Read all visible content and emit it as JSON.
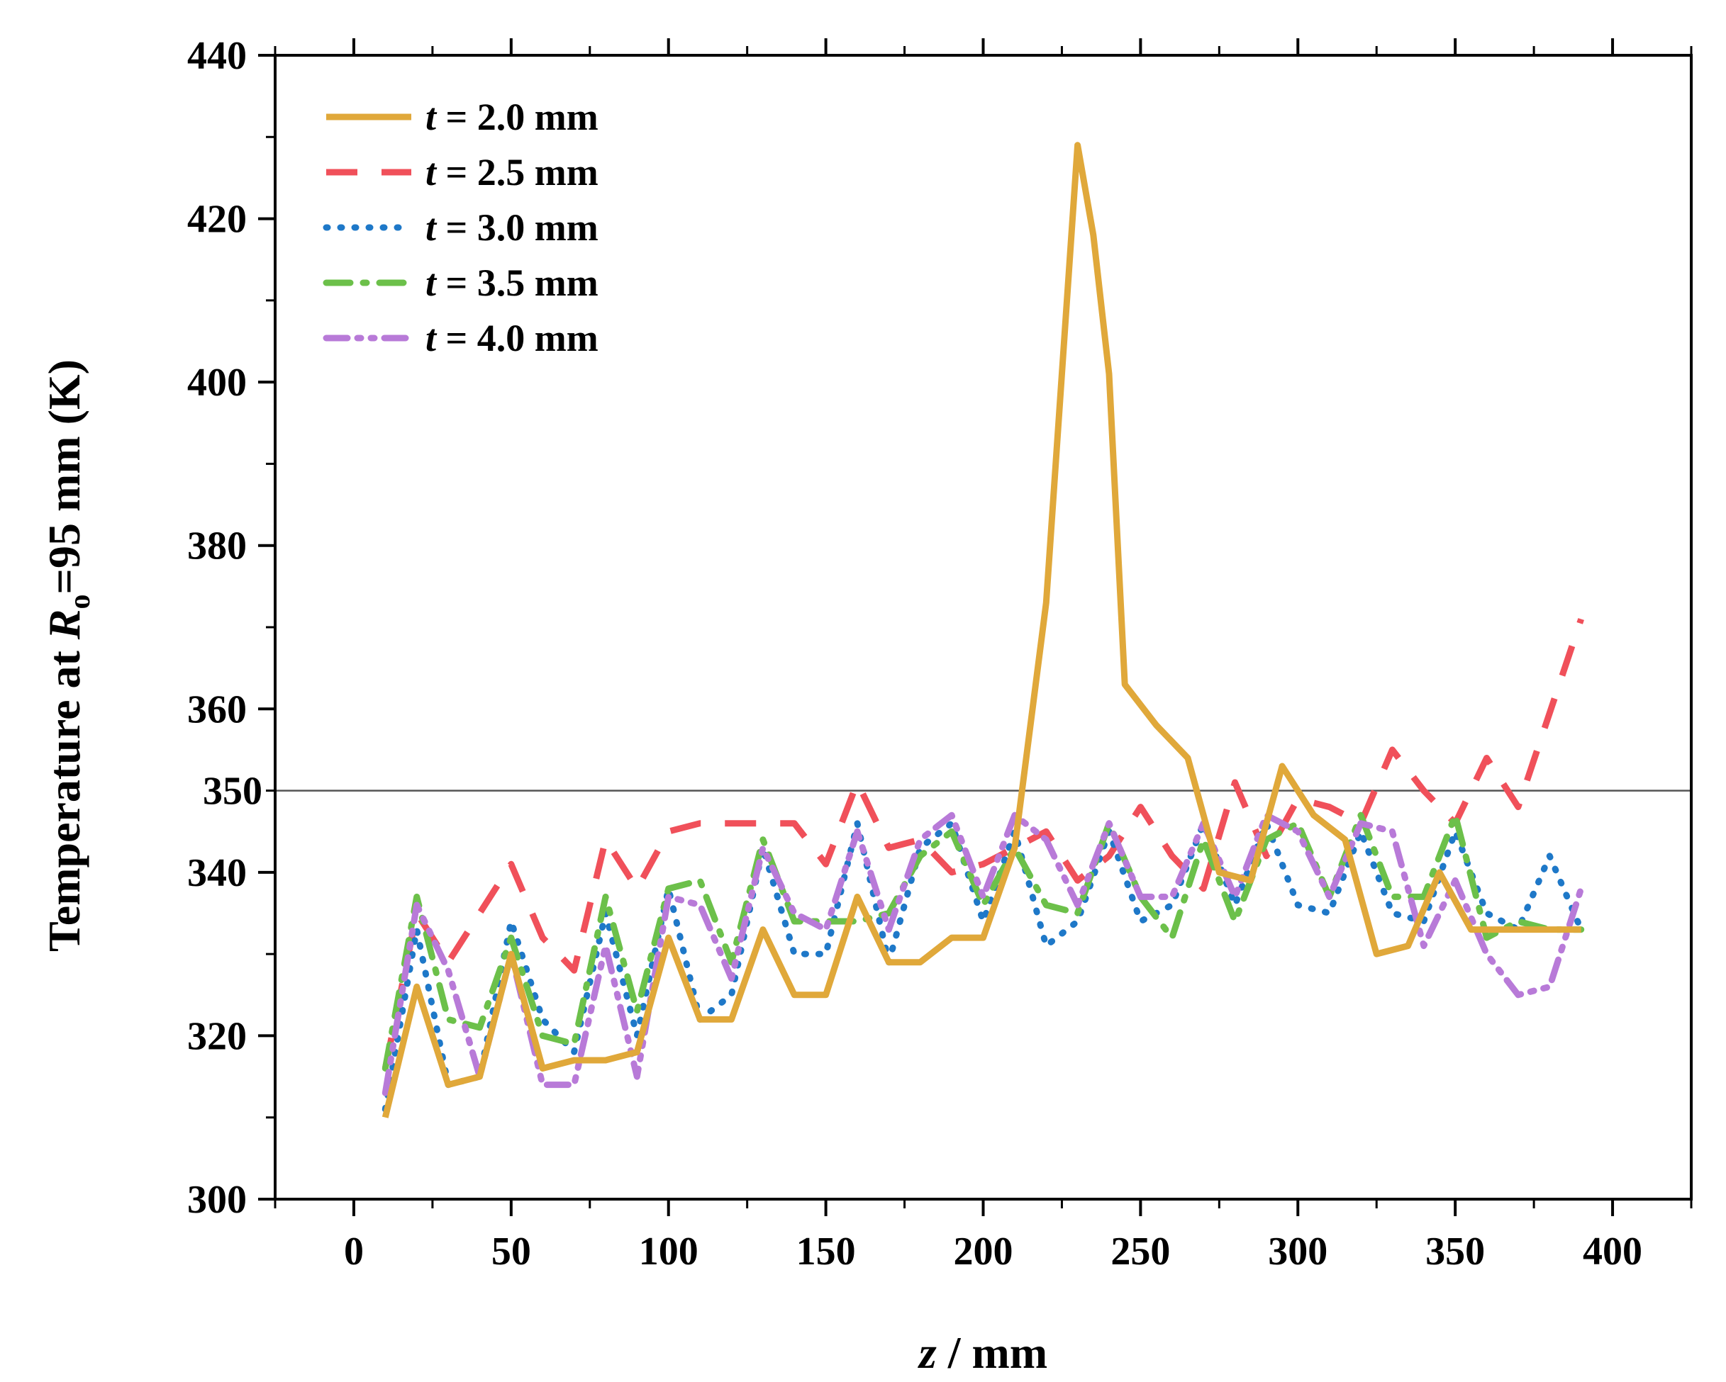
{
  "chart_data": {
    "type": "line",
    "title": "",
    "xlabel": {
      "var": "z",
      "rest": " / mm"
    },
    "ylabel": {
      "prefix": "Temperature at ",
      "var": "R",
      "sub": "o",
      "rest": "=95 mm (K)"
    },
    "xlim": [
      -25,
      425
    ],
    "ylim": [
      300,
      440
    ],
    "xticks": [
      0,
      50,
      100,
      150,
      200,
      250,
      300,
      350,
      400
    ],
    "yticks": [
      300,
      320,
      340,
      360,
      380,
      400,
      420,
      440
    ],
    "reference_line": {
      "y": 350,
      "label": "350",
      "color": "#555555"
    },
    "legend_position": "top-left",
    "series": [
      {
        "name": "t = 2.0 mm",
        "var": "t",
        "label_rest": " = 2.0 mm",
        "color": "#E0A83A",
        "style": "solid",
        "x": [
          10,
          20,
          30,
          40,
          50,
          60,
          70,
          80,
          90,
          100,
          110,
          120,
          130,
          140,
          150,
          160,
          170,
          180,
          190,
          200,
          210,
          220,
          230,
          235,
          240,
          245,
          255,
          265,
          275,
          285,
          295,
          305,
          315,
          325,
          335,
          345,
          355,
          365,
          375,
          390
        ],
        "values": [
          310,
          326,
          314,
          315,
          330,
          316,
          317,
          317,
          318,
          332,
          322,
          322,
          333,
          325,
          325,
          337,
          329,
          329,
          332,
          332,
          343,
          373,
          429,
          418,
          401,
          363,
          358,
          354,
          340,
          339,
          353,
          347,
          344,
          330,
          331,
          340,
          333,
          333,
          333,
          333
        ]
      },
      {
        "name": "t = 2.5 mm",
        "var": "t",
        "label_rest": " = 2.5 mm",
        "color": "#F0505A",
        "style": "dash",
        "x": [
          10,
          20,
          30,
          40,
          50,
          60,
          70,
          80,
          90,
          100,
          110,
          120,
          130,
          140,
          150,
          160,
          170,
          180,
          190,
          200,
          210,
          220,
          230,
          240,
          250,
          260,
          270,
          280,
          290,
          300,
          310,
          320,
          330,
          340,
          350,
          360,
          370,
          390
        ],
        "values": [
          316,
          335,
          329,
          335,
          341,
          332,
          328,
          344,
          338,
          345,
          346,
          346,
          346,
          346,
          341,
          351,
          343,
          344,
          340,
          341,
          343,
          345,
          339,
          342,
          348,
          342,
          338,
          351,
          342,
          349,
          348,
          346,
          355,
          350,
          346,
          354,
          348,
          371
        ]
      },
      {
        "name": "t = 3.0 mm",
        "var": "t",
        "label_rest": " = 3.0 mm",
        "color": "#1E78C8",
        "style": "dot",
        "x": [
          10,
          20,
          30,
          40,
          50,
          60,
          70,
          80,
          90,
          100,
          110,
          120,
          130,
          140,
          150,
          160,
          170,
          180,
          190,
          200,
          210,
          220,
          230,
          240,
          250,
          260,
          270,
          280,
          290,
          300,
          310,
          320,
          330,
          340,
          350,
          360,
          370,
          380,
          390
        ],
        "values": [
          311,
          333,
          314,
          315,
          334,
          322,
          318,
          335,
          320,
          338,
          322,
          325,
          343,
          330,
          330,
          346,
          329,
          343,
          346,
          334,
          345,
          331,
          334,
          345,
          334,
          336,
          346,
          336,
          346,
          336,
          335,
          345,
          335,
          334,
          345,
          335,
          333,
          342,
          333
        ]
      },
      {
        "name": "t = 3.5 mm",
        "var": "t",
        "label_rest": " = 3.5 mm",
        "color": "#6CC04A",
        "style": "dashdot",
        "x": [
          10,
          20,
          30,
          40,
          50,
          60,
          70,
          80,
          90,
          100,
          110,
          120,
          130,
          140,
          150,
          160,
          170,
          180,
          190,
          200,
          210,
          220,
          230,
          240,
          250,
          260,
          270,
          280,
          290,
          300,
          310,
          320,
          330,
          340,
          350,
          360,
          370,
          380,
          390
        ],
        "values": [
          316,
          337,
          322,
          321,
          332,
          320,
          319,
          337,
          323,
          338,
          339,
          329,
          344,
          334,
          334,
          334,
          335,
          342,
          345,
          336,
          343,
          336,
          335,
          346,
          337,
          332,
          344,
          334,
          344,
          346,
          337,
          347,
          337,
          337,
          347,
          332,
          334,
          333,
          333
        ]
      },
      {
        "name": "t = 4.0 mm",
        "var": "t",
        "label_rest": " = 4.0 mm",
        "color": "#B87AD8",
        "style": "dashdotdot",
        "x": [
          10,
          20,
          30,
          40,
          50,
          60,
          70,
          80,
          90,
          100,
          110,
          120,
          130,
          140,
          150,
          160,
          170,
          180,
          190,
          200,
          210,
          220,
          230,
          240,
          250,
          260,
          270,
          280,
          290,
          300,
          310,
          320,
          330,
          340,
          350,
          360,
          370,
          380,
          390
        ],
        "values": [
          313,
          336,
          328,
          315,
          330,
          314,
          314,
          331,
          315,
          337,
          336,
          327,
          343,
          335,
          333,
          345,
          333,
          344,
          347,
          337,
          347,
          344,
          336,
          346,
          337,
          337,
          346,
          337,
          347,
          345,
          337,
          346,
          345,
          331,
          339,
          330,
          325,
          326,
          338
        ]
      }
    ]
  }
}
